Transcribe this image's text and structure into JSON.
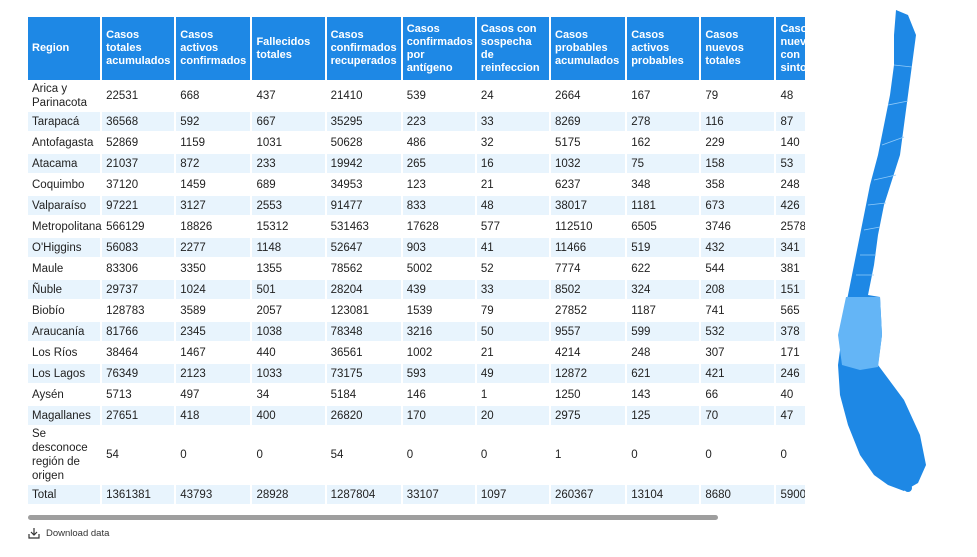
{
  "table": {
    "headers": [
      "Region",
      "Casos totales acumulados",
      "Casos activos confirmados",
      "Fallecidos totales",
      "Casos confirmados recuperados",
      "Casos confirmados por antígeno",
      "Casos con sospecha de reinfeccion",
      "Casos probables acumulados",
      "Casos activos probables",
      "Casos nuevos totales",
      "Casos nuevos con sintomas"
    ],
    "rows": [
      [
        "Arica y Parinacota",
        22531,
        668,
        437,
        21410,
        539,
        24,
        2664,
        167,
        79,
        48
      ],
      [
        "Tarapacá",
        36568,
        592,
        667,
        35295,
        223,
        33,
        8269,
        278,
        116,
        87
      ],
      [
        "Antofagasta",
        52869,
        1159,
        1031,
        50628,
        486,
        32,
        5175,
        162,
        229,
        140
      ],
      [
        "Atacama",
        21037,
        872,
        233,
        19942,
        265,
        16,
        1032,
        75,
        158,
        53
      ],
      [
        "Coquimbo",
        37120,
        1459,
        689,
        34953,
        123,
        21,
        6237,
        348,
        358,
        248
      ],
      [
        "Valparaíso",
        97221,
        3127,
        2553,
        91477,
        833,
        48,
        38017,
        1181,
        673,
        426
      ],
      [
        "Metropolitana",
        566129,
        18826,
        15312,
        531463,
        17628,
        577,
        112510,
        6505,
        3746,
        2578
      ],
      [
        "O'Higgins",
        56083,
        2277,
        1148,
        52647,
        903,
        41,
        11466,
        519,
        432,
        341
      ],
      [
        "Maule",
        83306,
        3350,
        1355,
        78562,
        5002,
        52,
        7774,
        622,
        544,
        381
      ],
      [
        "Ñuble",
        29737,
        1024,
        501,
        28204,
        439,
        33,
        8502,
        324,
        208,
        151
      ],
      [
        "Biobío",
        128783,
        3589,
        2057,
        123081,
        1539,
        79,
        27852,
        1187,
        741,
        565
      ],
      [
        "Araucanía",
        81766,
        2345,
        1038,
        78348,
        3216,
        50,
        9557,
        599,
        532,
        378
      ],
      [
        "Los Ríos",
        38464,
        1467,
        440,
        36561,
        1002,
        21,
        4214,
        248,
        307,
        171
      ],
      [
        "Los Lagos",
        76349,
        2123,
        1033,
        73175,
        593,
        49,
        12872,
        621,
        421,
        246
      ],
      [
        "Aysén",
        5713,
        497,
        34,
        5184,
        146,
        1,
        1250,
        143,
        66,
        40
      ],
      [
        "Magallanes",
        27651,
        418,
        400,
        26820,
        170,
        20,
        2975,
        125,
        70,
        47
      ],
      [
        "Se desconoce región de origen",
        54,
        0,
        0,
        54,
        0,
        0,
        1,
        0,
        0,
        0
      ],
      [
        "Total",
        1361381,
        43793,
        28928,
        1287804,
        33107,
        1097,
        260367,
        13104,
        8680,
        5900
      ]
    ]
  },
  "footer": {
    "download": "Download data"
  }
}
